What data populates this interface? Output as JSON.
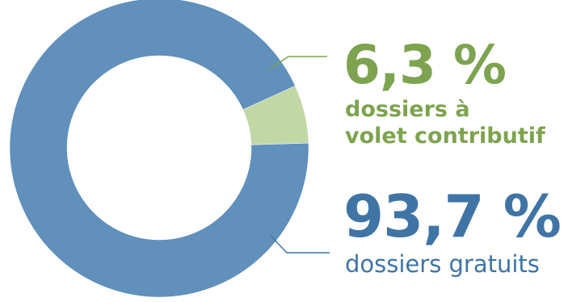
{
  "colors": {
    "gratuit": "#6090bb",
    "contributif_slice": "#c2d7a6",
    "contributif_text": "#7ea350",
    "gratuit_text": "#3f74a5"
  },
  "chart_data": {
    "type": "pie",
    "variant": "donut",
    "title": "",
    "legend": "none",
    "slices": [
      {
        "key": "contributif",
        "value": 6.3,
        "display": "6,3 %",
        "label_line1": "dossiers à",
        "label_line2": "volet contributif"
      },
      {
        "key": "gratuit",
        "value": 93.7,
        "display": "93,7 %",
        "label_line1": "dossiers gratuits"
      }
    ]
  }
}
